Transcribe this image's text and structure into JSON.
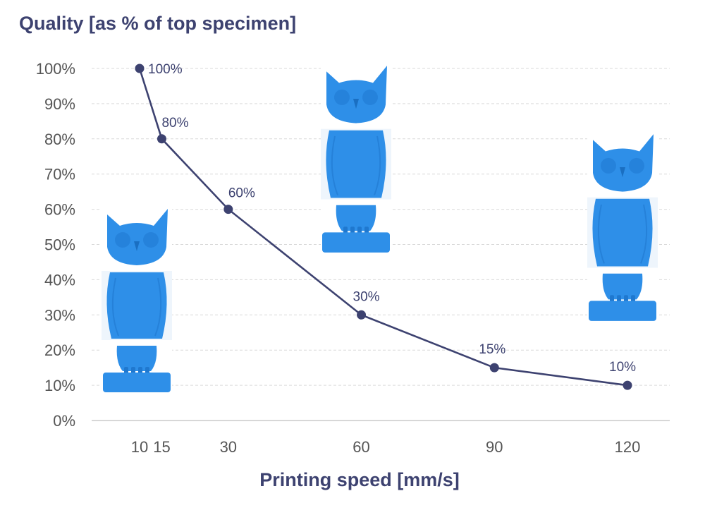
{
  "chart_data": {
    "type": "line",
    "title": "Quality [as % of top specimen]",
    "xlabel": "Printing speed [mm/s]",
    "ylabel": "",
    "x": [
      10,
      15,
      30,
      60,
      90,
      120
    ],
    "values": [
      100,
      80,
      60,
      30,
      15,
      10
    ],
    "data_labels": [
      "100%",
      "80%",
      "60%",
      "30%",
      "15%",
      "10%"
    ],
    "xticks": [
      "10",
      "15",
      "30",
      "60",
      "90",
      "120"
    ],
    "yticks": [
      "0%",
      "10%",
      "20%",
      "30%",
      "40%",
      "50%",
      "60%",
      "70%",
      "80%",
      "90%",
      "100%"
    ],
    "xlim": [
      10,
      120
    ],
    "ylim": [
      0,
      100
    ],
    "grid": true,
    "line_color": "#3d4270",
    "specimen_color": "#2e8fe8",
    "specimen_images": [
      {
        "name": "owl-specimen-slow"
      },
      {
        "name": "owl-specimen-medium"
      },
      {
        "name": "owl-specimen-fast"
      }
    ]
  }
}
